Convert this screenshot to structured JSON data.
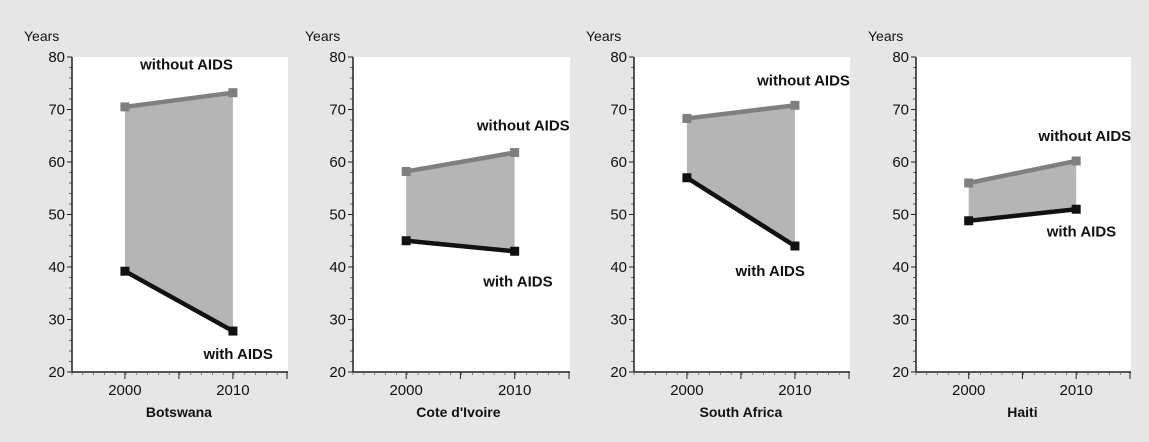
{
  "chart_data": [
    {
      "type": "line",
      "title": "",
      "xlabel": "Botswana",
      "ylabel": "Years",
      "categories": [
        "2000",
        "2010"
      ],
      "ylim": [
        20,
        80
      ],
      "yticks": [
        20,
        30,
        40,
        50,
        60,
        70,
        80
      ],
      "fill_between_series": true,
      "series": [
        {
          "name": "without AIDS",
          "values": [
            70.5,
            73.2
          ],
          "color": "#7f7f7f"
        },
        {
          "name": "with AIDS",
          "values": [
            39.2,
            27.8
          ],
          "color": "#111111"
        }
      ]
    },
    {
      "type": "line",
      "title": "",
      "xlabel": "Cote d'Ivoire",
      "ylabel": "Years",
      "categories": [
        "2000",
        "2010"
      ],
      "ylim": [
        20,
        80
      ],
      "yticks": [
        20,
        30,
        40,
        50,
        60,
        70,
        80
      ],
      "fill_between_series": true,
      "series": [
        {
          "name": "without AIDS",
          "values": [
            58.2,
            61.8
          ],
          "color": "#7f7f7f"
        },
        {
          "name": "with AIDS",
          "values": [
            45.0,
            43.0
          ],
          "color": "#111111"
        }
      ]
    },
    {
      "type": "line",
      "title": "",
      "xlabel": "South Africa",
      "ylabel": "Years",
      "categories": [
        "2000",
        "2010"
      ],
      "ylim": [
        20,
        80
      ],
      "yticks": [
        20,
        30,
        40,
        50,
        60,
        70,
        80
      ],
      "fill_between_series": true,
      "series": [
        {
          "name": "without AIDS",
          "values": [
            68.3,
            70.8
          ],
          "color": "#7f7f7f"
        },
        {
          "name": "with AIDS",
          "values": [
            57.0,
            44.0
          ],
          "color": "#111111"
        }
      ]
    },
    {
      "type": "line",
      "title": "",
      "xlabel": "Haiti",
      "ylabel": "Years",
      "categories": [
        "2000",
        "2010"
      ],
      "ylim": [
        20,
        80
      ],
      "yticks": [
        20,
        30,
        40,
        50,
        60,
        70,
        80
      ],
      "fill_between_series": true,
      "series": [
        {
          "name": "without AIDS",
          "values": [
            56.0,
            60.2
          ],
          "color": "#7f7f7f"
        },
        {
          "name": "with AIDS",
          "values": [
            48.8,
            51.0
          ],
          "color": "#111111"
        }
      ]
    }
  ],
  "colors": {
    "background": "#e6e6e6",
    "plot_area": "#ffffff",
    "fill_between": "#b5b5b5"
  }
}
